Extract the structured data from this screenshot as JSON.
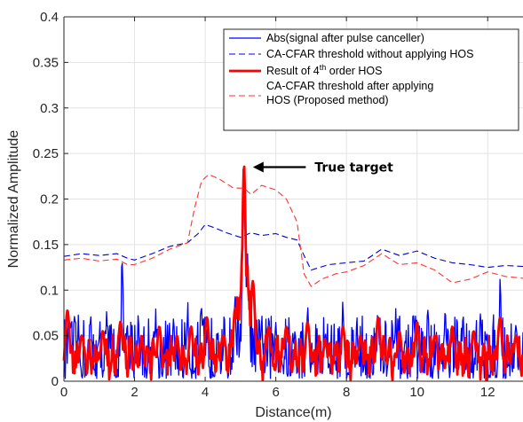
{
  "chart_data": {
    "type": "line",
    "xlabel": "Distance(m)",
    "ylabel": "Normalized Amplitude",
    "xlim": [
      0,
      13
    ],
    "ylim": [
      0,
      0.4
    ],
    "xticks": [
      0,
      2,
      4,
      6,
      8,
      10,
      12
    ],
    "yticks": [
      0,
      0.05,
      0.1,
      0.15,
      0.2,
      0.25,
      0.3,
      0.35,
      0.4
    ],
    "grid": true,
    "legend_position": "top-right",
    "legend": {
      "entries": [
        {
          "series": 0,
          "lines": [
            "Abs(signal after pulse canceller)"
          ]
        },
        {
          "series": 1,
          "lines": [
            "CA-CFAR threshold without applying HOS"
          ]
        },
        {
          "series": 2,
          "lines": [
            "Result of 4",
            "th",
            " order HOS"
          ],
          "superscript": true
        },
        {
          "series": 3,
          "lines": [
            "CA-CFAR threshold after applying",
            "HOS (Proposed method)"
          ]
        }
      ]
    },
    "annotation": {
      "text": "True target",
      "x": 5.15,
      "y": 0.237,
      "text_x": 7.1
    },
    "series": [
      {
        "name": "Abs(signal after pulse canceller)",
        "color": "#0000ff",
        "style": "solid",
        "width": 1.3,
        "noise": true,
        "peaks": [
          [
            0.15,
            0.107
          ],
          [
            0.4,
            0.07
          ],
          [
            0.75,
            0.075
          ],
          [
            1.2,
            0.09
          ],
          [
            1.65,
            0.143
          ],
          [
            2.1,
            0.075
          ],
          [
            2.6,
            0.09
          ],
          [
            3.1,
            0.075
          ],
          [
            3.5,
            0.095
          ],
          [
            3.9,
            0.1
          ],
          [
            4.35,
            0.075
          ],
          [
            4.55,
            0.06
          ],
          [
            4.85,
            0.1
          ],
          [
            5.1,
            0.245
          ],
          [
            5.2,
            0.185
          ],
          [
            5.6,
            0.08
          ],
          [
            6.0,
            0.09
          ],
          [
            6.5,
            0.07
          ],
          [
            6.9,
            0.095
          ],
          [
            7.4,
            0.06
          ],
          [
            7.9,
            0.095
          ],
          [
            8.3,
            0.07
          ],
          [
            8.9,
            0.1
          ],
          [
            9.4,
            0.08
          ],
          [
            9.9,
            0.085
          ],
          [
            10.3,
            0.08
          ],
          [
            10.8,
            0.085
          ],
          [
            11.3,
            0.075
          ],
          [
            11.8,
            0.085
          ],
          [
            12.35,
            0.125
          ],
          [
            12.8,
            0.072
          ]
        ]
      },
      {
        "name": "CA-CFAR threshold without applying HOS",
        "color": "#0000cc",
        "style": "dash",
        "width": 1.1,
        "x": [
          0,
          0.5,
          1.0,
          1.5,
          1.8,
          2.0,
          2.5,
          3.0,
          3.5,
          3.8,
          4.0,
          4.3,
          4.6,
          5.0,
          5.3,
          5.6,
          6.0,
          6.3,
          6.6,
          6.8,
          7.0,
          7.5,
          8.0,
          8.5,
          9.0,
          9.5,
          10.0,
          10.5,
          11.0,
          11.5,
          12.0,
          12.5,
          13.0
        ],
        "y": [
          0.137,
          0.14,
          0.138,
          0.14,
          0.135,
          0.133,
          0.14,
          0.148,
          0.152,
          0.162,
          0.172,
          0.168,
          0.163,
          0.158,
          0.163,
          0.16,
          0.162,
          0.158,
          0.155,
          0.138,
          0.122,
          0.128,
          0.13,
          0.132,
          0.145,
          0.138,
          0.143,
          0.135,
          0.13,
          0.128,
          0.125,
          0.127,
          0.126
        ]
      },
      {
        "name": "Result of 4th order HOS",
        "color": "#ff0000",
        "style": "solid",
        "width": 2.8,
        "noise": true,
        "peaks": [
          [
            0.1,
            0.078
          ],
          [
            0.5,
            0.05
          ],
          [
            1.1,
            0.055
          ],
          [
            1.6,
            0.065
          ],
          [
            2.2,
            0.05
          ],
          [
            2.7,
            0.06
          ],
          [
            3.2,
            0.05
          ],
          [
            3.6,
            0.06
          ],
          [
            4.05,
            0.07
          ],
          [
            4.5,
            0.05
          ],
          [
            4.85,
            0.08
          ],
          [
            5.1,
            0.238
          ],
          [
            5.35,
            0.11
          ],
          [
            5.8,
            0.06
          ],
          [
            6.3,
            0.06
          ],
          [
            6.9,
            0.065
          ],
          [
            7.4,
            0.045
          ],
          [
            7.9,
            0.06
          ],
          [
            8.4,
            0.05
          ],
          [
            8.9,
            0.07
          ],
          [
            9.5,
            0.055
          ],
          [
            10.0,
            0.065
          ],
          [
            10.5,
            0.05
          ],
          [
            11.0,
            0.06
          ],
          [
            11.6,
            0.055
          ],
          [
            12.35,
            0.07
          ],
          [
            12.8,
            0.05
          ]
        ]
      },
      {
        "name": "CA-CFAR threshold after applying HOS (Proposed method)",
        "color": "#ff3333",
        "style": "dash",
        "width": 1.1,
        "x": [
          0,
          0.5,
          1.0,
          1.5,
          1.8,
          2.0,
          2.5,
          3.0,
          3.5,
          3.7,
          3.9,
          4.1,
          4.4,
          4.8,
          5.1,
          5.3,
          5.6,
          6.0,
          6.3,
          6.6,
          6.8,
          7.0,
          7.3,
          7.7,
          8.0,
          8.5,
          9.0,
          9.5,
          10.0,
          10.5,
          11.0,
          11.5,
          12.0,
          12.5,
          13.0
        ],
        "y": [
          0.133,
          0.135,
          0.132,
          0.134,
          0.128,
          0.128,
          0.135,
          0.145,
          0.152,
          0.19,
          0.22,
          0.227,
          0.222,
          0.212,
          0.212,
          0.205,
          0.215,
          0.21,
          0.2,
          0.175,
          0.118,
          0.104,
          0.112,
          0.118,
          0.12,
          0.127,
          0.14,
          0.128,
          0.13,
          0.122,
          0.108,
          0.112,
          0.12,
          0.115,
          0.113
        ]
      }
    ]
  }
}
